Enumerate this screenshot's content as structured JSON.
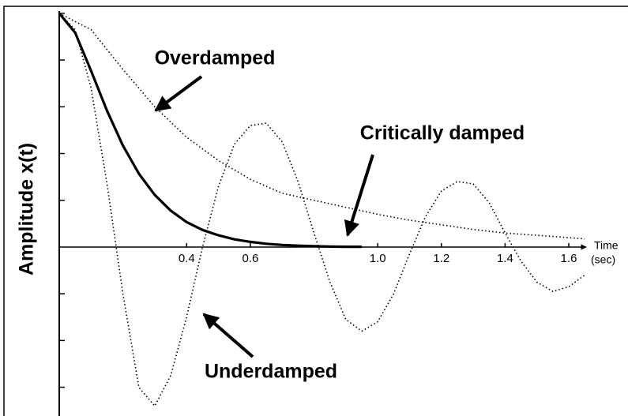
{
  "chart_data": {
    "type": "line",
    "ylabel": "Amplitude x(t)",
    "xlabel": [
      "Time",
      "(sec)"
    ],
    "xlim": [
      -0.186,
      1.786
    ],
    "ylim": [
      -0.723,
      1.057
    ],
    "xticks": [
      {
        "value": 0.4,
        "label": "0.4"
      },
      {
        "value": 0.6,
        "label": "0.6"
      },
      {
        "value": 1,
        "label": "1.0"
      },
      {
        "value": 1.2,
        "label": "1.2"
      },
      {
        "value": 1.4,
        "label": "1.4"
      },
      {
        "value": 1.6,
        "label": "1.6"
      }
    ],
    "yticks": [
      -0.6,
      -0.4,
      -0.2,
      0.2,
      0.4,
      0.6,
      0.8,
      1
    ],
    "series": [
      {
        "name": "Overdamped",
        "color": "#000000",
        "style": "dotted",
        "x": [
          0,
          0.1,
          0.2,
          0.3,
          0.4,
          0.5,
          0.6,
          0.7,
          0.8,
          0.9,
          1.0,
          1.1,
          1.2,
          1.3,
          1.4,
          1.5,
          1.6,
          1.65
        ],
        "values": [
          1,
          0.93,
          0.76,
          0.6,
          0.47,
          0.37,
          0.29,
          0.23,
          0.2,
          0.17,
          0.14,
          0.115,
          0.095,
          0.075,
          0.06,
          0.05,
          0.04,
          0.035
        ]
      },
      {
        "name": "Critically damped",
        "color": "#000000",
        "style": "solid",
        "x": [
          0,
          0.05,
          0.1,
          0.15,
          0.2,
          0.25,
          0.3,
          0.35,
          0.4,
          0.45,
          0.5,
          0.55,
          0.6,
          0.65,
          0.7,
          0.75,
          0.8,
          0.85,
          0.9,
          0.95
        ],
        "values": [
          1,
          0.917,
          0.754,
          0.583,
          0.434,
          0.314,
          0.223,
          0.156,
          0.107,
          0.073,
          0.05,
          0.033,
          0.022,
          0.014,
          0.009,
          0.006,
          0.004,
          0.002,
          0.001,
          0.001
        ]
      },
      {
        "name": "Underdamped",
        "color": "#000000",
        "style": "dotted",
        "x": [
          0,
          0.05,
          0.1,
          0.15,
          0.2,
          0.25,
          0.3,
          0.35,
          0.4,
          0.45,
          0.5,
          0.55,
          0.6,
          0.65,
          0.7,
          0.75,
          0.8,
          0.85,
          0.9,
          0.95,
          1.0,
          1.05,
          1.1,
          1.15,
          1.2,
          1.25,
          1.3,
          1.35,
          1.4,
          1.45,
          1.5,
          1.55,
          1.6,
          1.65
        ],
        "values": [
          1,
          0.93,
          0.68,
          0.27,
          -0.2,
          -0.6,
          -0.68,
          -0.55,
          -0.3,
          0,
          0.26,
          0.44,
          0.52,
          0.53,
          0.45,
          0.28,
          0.06,
          -0.15,
          -0.31,
          -0.36,
          -0.32,
          -0.2,
          -0.03,
          0.13,
          0.24,
          0.28,
          0.27,
          0.19,
          0.06,
          -0.06,
          -0.15,
          -0.19,
          -0.17,
          -0.12
        ]
      }
    ]
  }
}
